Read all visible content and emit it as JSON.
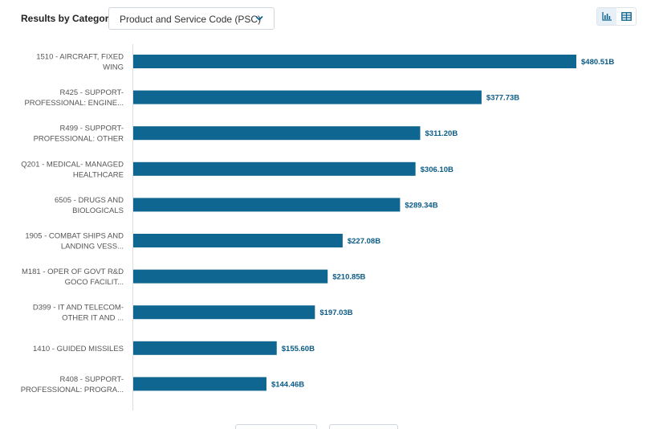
{
  "header": {
    "title": "Results by Category",
    "dropdown_value": "Product and Service Code (PSC)"
  },
  "view_toggle": {
    "options": [
      "chart-view-icon",
      "table-view-icon"
    ],
    "active": "chart-view-icon"
  },
  "colors": {
    "bar": "#0f6690",
    "value_label": "#0a5a85",
    "axis": "#dddddd"
  },
  "chart_data": {
    "type": "bar",
    "orientation": "horizontal",
    "categories": [
      [
        "1510 - AIRCRAFT, FIXED",
        "WING"
      ],
      [
        "R425 - SUPPORT-",
        "PROFESSIONAL: ENGINE..."
      ],
      [
        "R499 - SUPPORT-",
        "PROFESSIONAL: OTHER"
      ],
      [
        "Q201 - MEDICAL- MANAGED",
        "HEALTHCARE"
      ],
      [
        "6505 - DRUGS AND",
        "BIOLOGICALS"
      ],
      [
        "1905 - COMBAT SHIPS AND",
        "LANDING VESS..."
      ],
      [
        "M181 - OPER OF GOVT R&D",
        "GOCO FACILIT..."
      ],
      [
        "D399 - IT AND TELECOM-",
        "OTHER IT AND ..."
      ],
      [
        "1410 - GUIDED MISSILES"
      ],
      [
        "R408 - SUPPORT-",
        "PROFESSIONAL: PROGRA..."
      ]
    ],
    "values": [
      480.51,
      377.73,
      311.2,
      306.1,
      289.34,
      227.08,
      210.85,
      197.03,
      155.6,
      144.46
    ],
    "value_labels": [
      "$480.51B",
      "$377.73B",
      "$311.20B",
      "$306.10B",
      "$289.34B",
      "$227.08B",
      "$210.85B",
      "$197.03B",
      "$155.60B",
      "$144.46B"
    ],
    "unit": "B",
    "xlim": [
      0,
      480.51
    ]
  }
}
